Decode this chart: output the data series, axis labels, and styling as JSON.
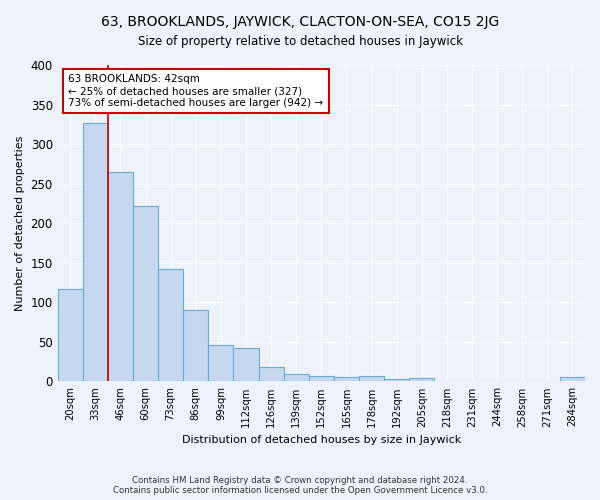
{
  "title1": "63, BROOKLANDS, JAYWICK, CLACTON-ON-SEA, CO15 2JG",
  "title2": "Size of property relative to detached houses in Jaywick",
  "xlabel": "Distribution of detached houses by size in Jaywick",
  "ylabel": "Number of detached properties",
  "footer1": "Contains HM Land Registry data © Crown copyright and database right 2024.",
  "footer2": "Contains public sector information licensed under the Open Government Licence v3.0.",
  "categories": [
    "20sqm",
    "33sqm",
    "46sqm",
    "60sqm",
    "73sqm",
    "86sqm",
    "99sqm",
    "112sqm",
    "126sqm",
    "139sqm",
    "152sqm",
    "165sqm",
    "178sqm",
    "192sqm",
    "205sqm",
    "218sqm",
    "231sqm",
    "244sqm",
    "258sqm",
    "271sqm",
    "284sqm"
  ],
  "values": [
    117,
    327,
    265,
    222,
    142,
    90,
    46,
    42,
    18,
    9,
    7,
    6,
    7,
    3,
    4,
    0,
    0,
    0,
    0,
    0,
    5
  ],
  "bar_color": "#c5d8ef",
  "bar_edge_color": "#6aaad4",
  "bg_color": "#eef2fa",
  "grid_color": "#ffffff",
  "annotation_text_line1": "63 BROOKLANDS: 42sqm",
  "annotation_text_line2": "← 25% of detached houses are smaller (327)",
  "annotation_text_line3": "73% of semi-detached houses are larger (942) →",
  "annotation_box_color": "#ffffff",
  "annotation_border_color": "#cc0000",
  "red_line_x": 1.5,
  "ylim": [
    0,
    400
  ],
  "yticks": [
    0,
    50,
    100,
    150,
    200,
    250,
    300,
    350,
    400
  ]
}
